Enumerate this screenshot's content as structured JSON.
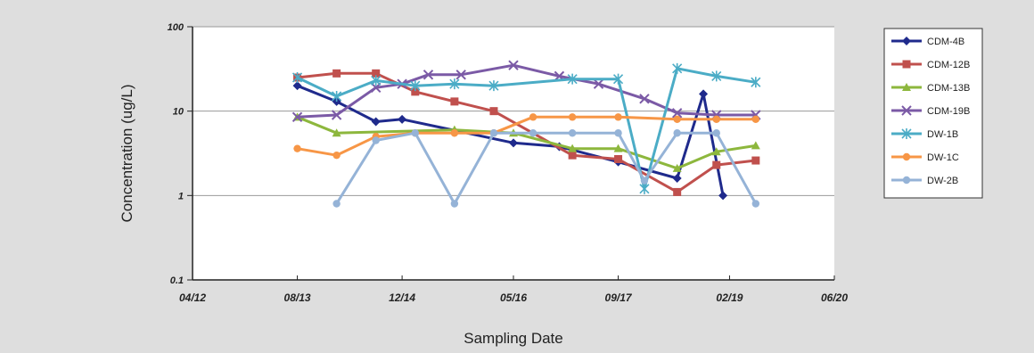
{
  "chart_data": {
    "type": "line",
    "title": "",
    "xlabel": "Sampling Date",
    "ylabel": "Concentration (ug/L)",
    "yscale": "log",
    "ylim": [
      0.1,
      100
    ],
    "y_ticks": [
      0.1,
      1,
      10,
      100
    ],
    "y_tick_labels": [
      "0.1",
      "1",
      "10",
      "100"
    ],
    "xlim": [
      "2012-04",
      "2020-06"
    ],
    "x_ticks": [
      "2012-04",
      "2013-08",
      "2014-12",
      "2016-05",
      "2017-09",
      "2019-02",
      "2020-06"
    ],
    "x_tick_labels": [
      "04/12",
      "08/13",
      "12/14",
      "05/16",
      "09/17",
      "02/19",
      "06/20"
    ],
    "grid": "horizontal",
    "legend_position": "right",
    "series": [
      {
        "name": "CDM-4B",
        "color": "#1f2a8c",
        "marker": "diamond",
        "x": [
          "2013-08",
          "2014-02",
          "2014-08",
          "2014-12",
          "2016-05",
          "2016-12",
          "2017-09",
          "2018-06",
          "2018-10",
          "2019-01"
        ],
        "values": [
          20,
          13,
          7.5,
          8,
          4.2,
          3.8,
          2.5,
          1.6,
          16,
          1.0
        ]
      },
      {
        "name": "CDM-12B",
        "color": "#c0504d",
        "marker": "square",
        "x": [
          "2013-08",
          "2014-02",
          "2014-08",
          "2015-02",
          "2015-08",
          "2016-02",
          "2017-02",
          "2017-09",
          "2018-06",
          "2018-12",
          "2019-06"
        ],
        "values": [
          25,
          28,
          28,
          17,
          13,
          10,
          3,
          2.7,
          1.1,
          2.3,
          2.6
        ]
      },
      {
        "name": "CDM-13B",
        "color": "#8db73d",
        "marker": "triangle",
        "x": [
          "2013-08",
          "2014-02",
          "2015-08",
          "2016-05",
          "2017-02",
          "2017-09",
          "2018-06",
          "2018-12",
          "2019-06"
        ],
        "values": [
          8.5,
          5.5,
          6,
          5.5,
          3.6,
          3.6,
          2.1,
          3.3,
          3.9
        ]
      },
      {
        "name": "CDM-19B",
        "color": "#7b5aa6",
        "marker": "x",
        "x": [
          "2013-08",
          "2014-02",
          "2014-08",
          "2014-12",
          "2015-04",
          "2015-09",
          "2016-05",
          "2016-12",
          "2017-06",
          "2018-01",
          "2018-06",
          "2018-12",
          "2019-06"
        ],
        "values": [
          8.5,
          9,
          19,
          21,
          27,
          27,
          35,
          26,
          21,
          14,
          9.5,
          9,
          9
        ]
      },
      {
        "name": "DW-1B",
        "color": "#4bacc6",
        "marker": "star",
        "x": [
          "2013-08",
          "2014-02",
          "2014-08",
          "2015-02",
          "2015-08",
          "2016-02",
          "2017-02",
          "2017-09",
          "2018-01",
          "2018-06",
          "2018-12",
          "2019-06"
        ],
        "values": [
          25,
          15,
          23,
          20,
          21,
          20,
          24,
          24,
          1.2,
          32,
          26,
          22
        ]
      },
      {
        "name": "DW-1C",
        "color": "#f79646",
        "marker": "circle",
        "x": [
          "2013-08",
          "2014-02",
          "2014-08",
          "2015-02",
          "2015-08",
          "2016-02",
          "2016-08",
          "2017-02",
          "2017-09",
          "2018-06",
          "2018-12",
          "2019-06"
        ],
        "values": [
          3.6,
          3,
          5,
          5.5,
          5.5,
          5.5,
          8.5,
          8.5,
          8.5,
          8,
          8,
          8
        ]
      },
      {
        "name": "DW-2B",
        "color": "#95b3d7",
        "marker": "circle",
        "x": [
          "2014-02",
          "2014-08",
          "2015-02",
          "2015-08",
          "2016-02",
          "2016-08",
          "2017-02",
          "2017-09",
          "2018-01",
          "2018-06",
          "2018-12",
          "2019-06"
        ],
        "values": [
          0.8,
          4.5,
          5.5,
          0.8,
          5.5,
          5.5,
          5.5,
          5.5,
          1.5,
          5.5,
          5.5,
          0.8
        ]
      }
    ]
  }
}
